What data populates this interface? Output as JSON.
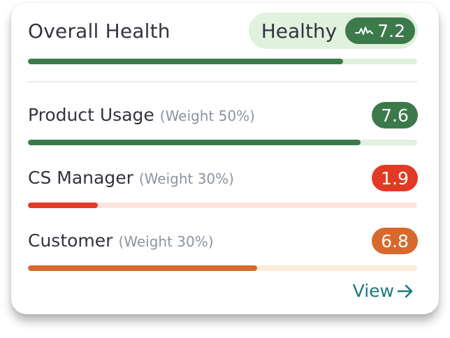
{
  "overall": {
    "title": "Overall Health",
    "status": "Healthy",
    "score": "7.2",
    "progress": 0.81,
    "colors": {
      "pill_bg": "#e0f1de",
      "chip": "#3c7a4b",
      "fill": "#3c7a4b",
      "track": "#e0f1de"
    }
  },
  "metrics": [
    {
      "label": "Product Usage",
      "weight": "(Weight 50%)",
      "score": "7.6",
      "progress": 0.855,
      "chip_color": "#3c7a4b",
      "fill_color": "#3c7a4b",
      "track_color": "#e0f1de"
    },
    {
      "label": "CS Manager",
      "weight": "(Weight 30%)",
      "score": "1.9",
      "progress": 0.18,
      "chip_color": "#e13a25",
      "fill_color": "#e13a25",
      "track_color": "#fde4df"
    },
    {
      "label": "Customer",
      "weight": "(Weight 30%)",
      "score": "6.8",
      "progress": 0.588,
      "chip_color": "#d8692c",
      "fill_color": "#d8692c",
      "track_color": "#fcecd9"
    }
  ],
  "footer": {
    "view_label": "View",
    "link_color": "#1a7a80"
  },
  "icons": {
    "status": "pulse-icon",
    "view": "arrow-right-icon"
  }
}
